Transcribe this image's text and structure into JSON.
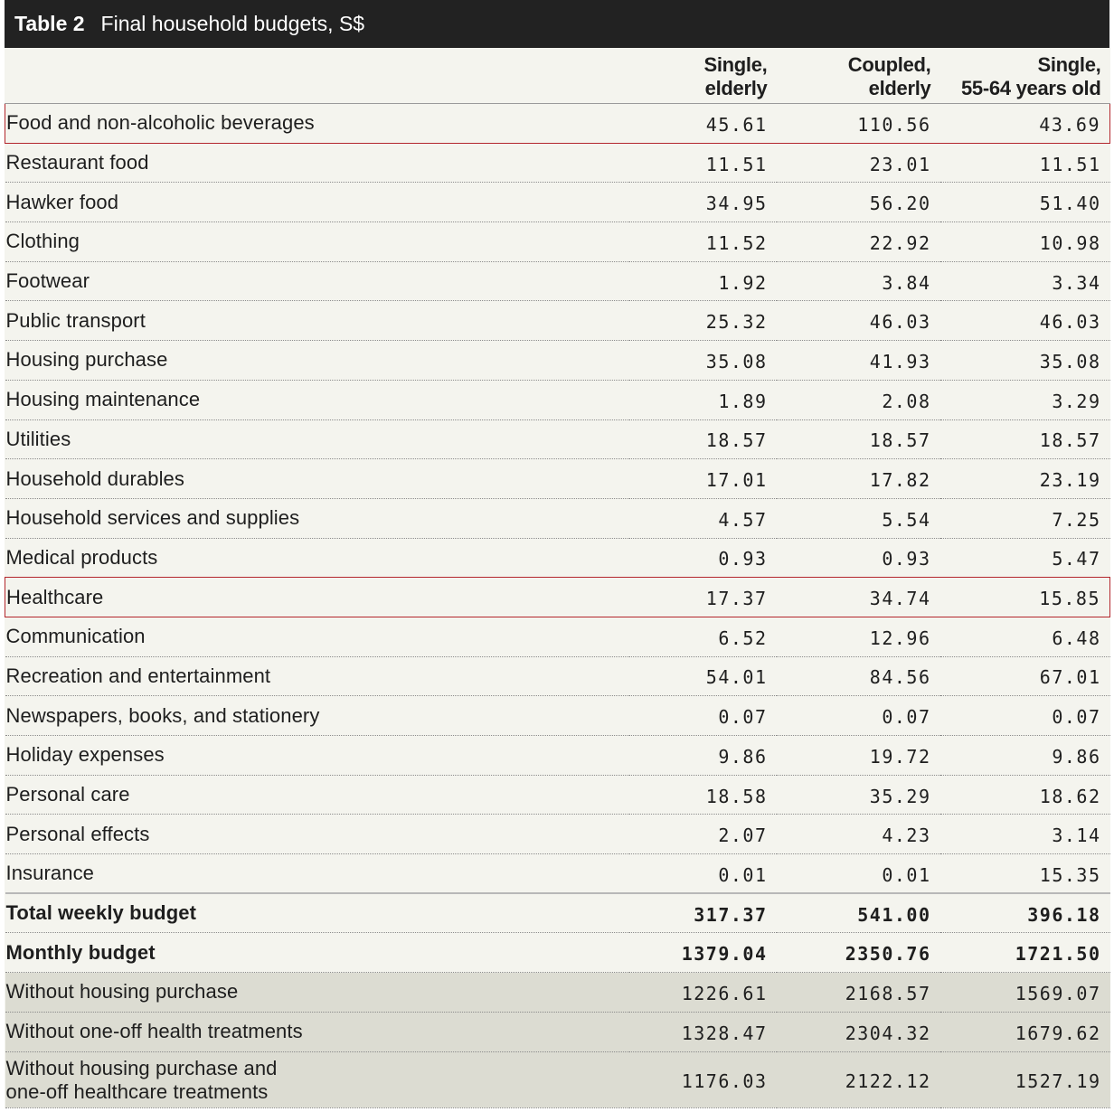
{
  "table": {
    "number": "Table 2",
    "title": "Final household budgets, S$",
    "columns": [
      {
        "line1": "Single,",
        "line2": "elderly"
      },
      {
        "line1": "Coupled,",
        "line2": "elderly"
      },
      {
        "line1": "Single,",
        "line2": "55-64 years old"
      }
    ],
    "rows": [
      {
        "label": "Food and non-alcoholic beverages",
        "values": [
          "45.61",
          "110.56",
          "43.69"
        ],
        "highlight": true
      },
      {
        "label": "Restaurant food",
        "values": [
          "11.51",
          "23.01",
          "11.51"
        ]
      },
      {
        "label": "Hawker food",
        "values": [
          "34.95",
          "56.20",
          "51.40"
        ]
      },
      {
        "label": "Clothing",
        "values": [
          "11.52",
          "22.92",
          "10.98"
        ]
      },
      {
        "label": "Footwear",
        "values": [
          "1.92",
          "3.84",
          "3.34"
        ]
      },
      {
        "label": "Public transport",
        "values": [
          "25.32",
          "46.03",
          "46.03"
        ]
      },
      {
        "label": "Housing purchase",
        "values": [
          "35.08",
          "41.93",
          "35.08"
        ]
      },
      {
        "label": "Housing maintenance",
        "values": [
          "1.89",
          "2.08",
          "3.29"
        ]
      },
      {
        "label": "Utilities",
        "values": [
          "18.57",
          "18.57",
          "18.57"
        ]
      },
      {
        "label": "Household durables",
        "values": [
          "17.01",
          "17.82",
          "23.19"
        ]
      },
      {
        "label": "Household services and supplies",
        "values": [
          "4.57",
          "5.54",
          "7.25"
        ]
      },
      {
        "label": "Medical products",
        "values": [
          "0.93",
          "0.93",
          "5.47"
        ]
      },
      {
        "label": "Healthcare",
        "values": [
          "17.37",
          "34.74",
          "15.85"
        ],
        "highlight": true
      },
      {
        "label": "Communication",
        "values": [
          "6.52",
          "12.96",
          "6.48"
        ]
      },
      {
        "label": "Recreation and entertainment",
        "values": [
          "54.01",
          "84.56",
          "67.01"
        ]
      },
      {
        "label": "Newspapers, books, and stationery",
        "values": [
          "0.07",
          "0.07",
          "0.07"
        ]
      },
      {
        "label": "Holiday expenses",
        "values": [
          "9.86",
          "19.72",
          "9.86"
        ]
      },
      {
        "label": "Personal care",
        "values": [
          "18.58",
          "35.29",
          "18.62"
        ]
      },
      {
        "label": "Personal effects",
        "values": [
          "2.07",
          "4.23",
          "3.14"
        ]
      },
      {
        "label": "Insurance",
        "values": [
          "0.01",
          "0.01",
          "15.35"
        ]
      }
    ],
    "totals": [
      {
        "label": "Total weekly budget",
        "values": [
          "317.37",
          "541.00",
          "396.18"
        ]
      },
      {
        "label": "Monthly budget",
        "values": [
          "1379.04",
          "2350.76",
          "1721.50"
        ]
      }
    ],
    "variants": [
      {
        "label": "Without housing purchase",
        "values": [
          "1226.61",
          "2168.57",
          "1569.07"
        ]
      },
      {
        "label": "Without one-off health treatments",
        "values": [
          "1328.47",
          "2304.32",
          "1679.62"
        ]
      },
      {
        "label_line1": "Without housing purchase and",
        "label_line2": "one-off healthcare treatments",
        "values": [
          "1176.03",
          "2122.12",
          "1527.19"
        ]
      }
    ]
  }
}
